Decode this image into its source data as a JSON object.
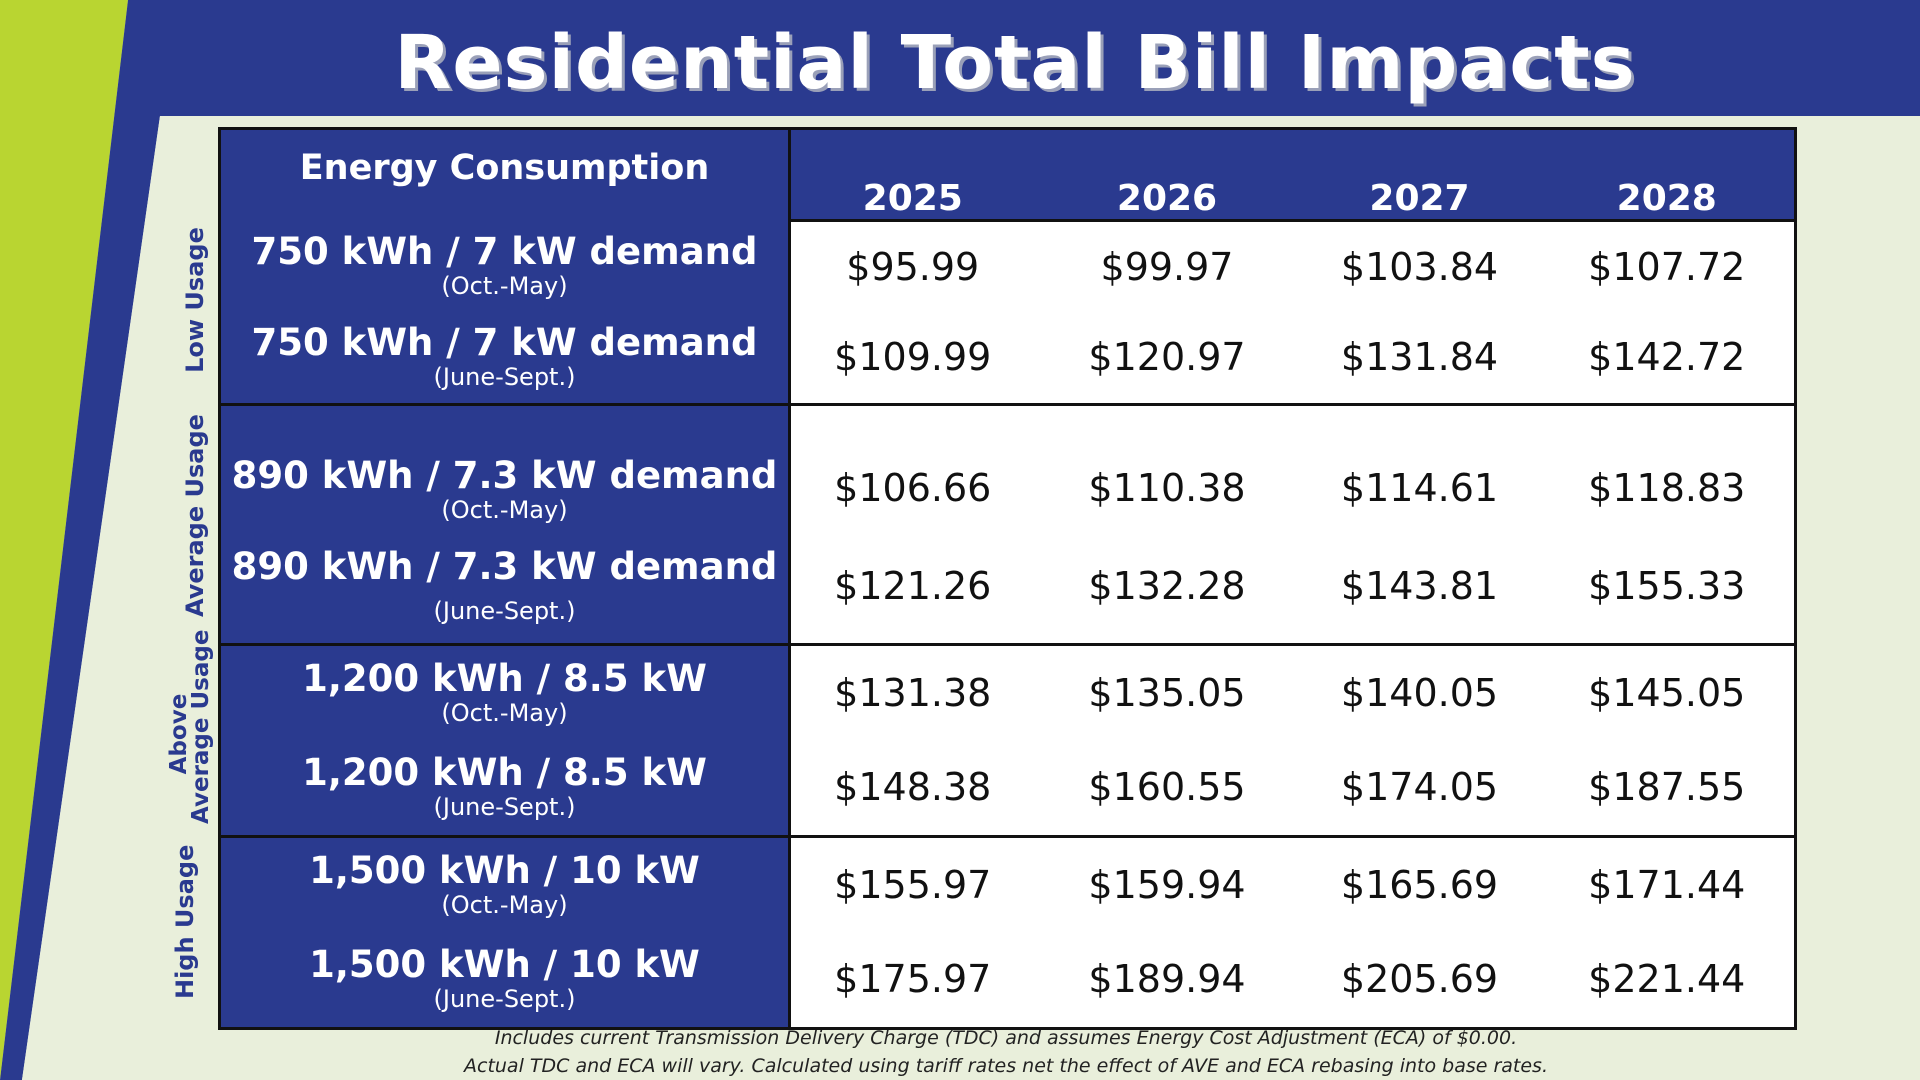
{
  "title": "Residential Total Bill Impacts",
  "colors": {
    "navy": "#2a3a8f",
    "lime": "#b9d531",
    "light_bg": "#e9efdb"
  },
  "table": {
    "header": {
      "consumption": "Energy Consumption",
      "years": [
        "2025",
        "2026",
        "2027",
        "2028"
      ]
    },
    "groups": [
      {
        "label": "Low Usage",
        "rows": [
          {
            "consumption": "750 kWh /  7 kW demand",
            "period": "(Oct.-May)",
            "values": [
              "$95.99",
              "$99.97",
              "$103.84",
              "$107.72"
            ]
          },
          {
            "consumption": "750 kWh /  7 kW demand",
            "period": "(June-Sept.)",
            "values": [
              "$109.99",
              "$120.97",
              "$131.84",
              "$142.72"
            ]
          }
        ]
      },
      {
        "label": "Average Usage",
        "rows": [
          {
            "consumption": "890 kWh /  7.3 kW demand",
            "period": "(Oct.-May)",
            "values": [
              "$106.66",
              "$110.38",
              "$114.61",
              "$118.83"
            ]
          },
          {
            "consumption": "890 kWh /  7.3 kW demand",
            "period": "(June-Sept.)",
            "values": [
              "$121.26",
              "$132.28",
              "$143.81",
              "$155.33"
            ]
          }
        ]
      },
      {
        "label_line1": "Above",
        "label_line2": "Average Usage",
        "rows": [
          {
            "consumption": "1,200 kWh / 8.5 kW",
            "period": "(Oct.-May)",
            "values": [
              "$131.38",
              "$135.05",
              "$140.05",
              "$145.05"
            ]
          },
          {
            "consumption": "1,200 kWh / 8.5 kW",
            "period": "(June-Sept.)",
            "values": [
              "$148.38",
              "$160.55",
              "$174.05",
              "$187.55"
            ]
          }
        ]
      },
      {
        "label": "High  Usage",
        "rows": [
          {
            "consumption": "1,500 kWh / 10 kW",
            "period": "(Oct.-May)",
            "values": [
              "$155.97",
              "$159.94",
              "$165.69",
              "$171.44"
            ]
          },
          {
            "consumption": "1,500 kWh / 10 kW",
            "period": "(June-Sept.)",
            "values": [
              "$175.97",
              "$189.94",
              "$205.69",
              "$221.44"
            ]
          }
        ]
      }
    ]
  },
  "footnote": {
    "line1": "Includes current Transmission Delivery Charge (TDC) and assumes Energy Cost Adjustment (ECA) of $0.00.",
    "line2": "Actual TDC and ECA will vary. Calculated using tariff rates net the effect of AVE and ECA rebasing into base rates."
  }
}
